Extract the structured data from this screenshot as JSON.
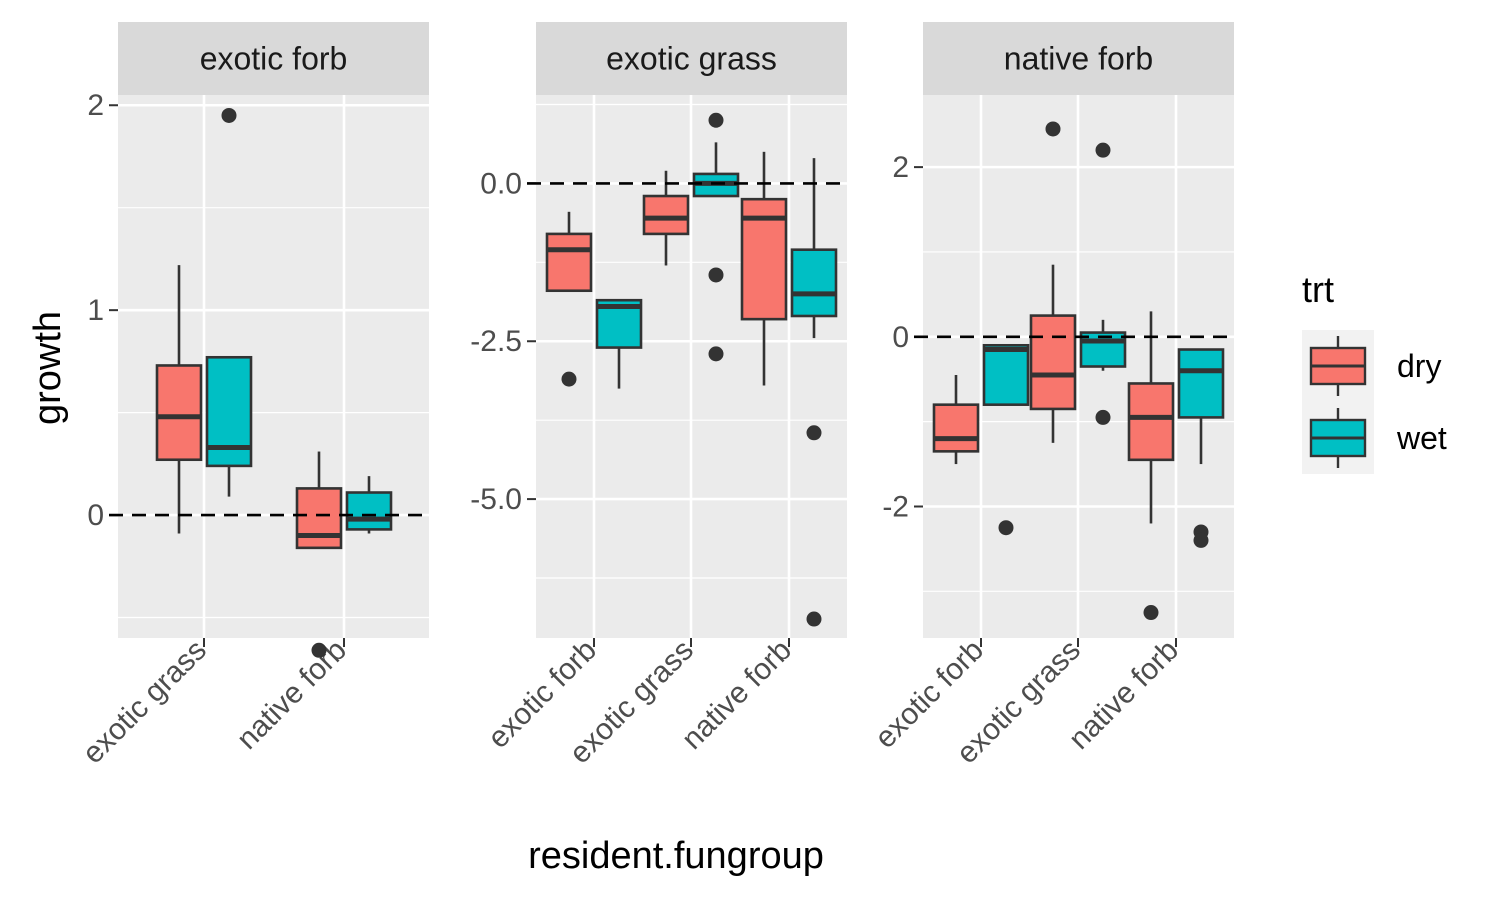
{
  "chart_data": {
    "type": "boxplot",
    "facet_by": "invader group",
    "xlabel": "resident.fungroup",
    "ylabel": "growth",
    "reference_line": 0,
    "grid": true,
    "scales": "free",
    "legend": {
      "title": "trt",
      "position": "right",
      "entries": [
        {
          "key": "dry",
          "label": "dry",
          "color": "#F8766D"
        },
        {
          "key": "wet",
          "label": "wet",
          "color": "#00BFC4"
        }
      ]
    },
    "colors": {
      "panel_bg": "#EBEBEB",
      "strip_bg": "#D9D9D9",
      "grid": "#FFFFFF",
      "box_outline": "#333333"
    },
    "panels": [
      {
        "title": "exotic forb",
        "ylim": [
          -0.6,
          2.05
        ],
        "yticks": [
          0,
          1,
          2
        ],
        "ytick_labels": [
          "0",
          "1",
          "2"
        ],
        "categories": [
          "exotic grass",
          "native forb"
        ],
        "boxes": [
          {
            "category": "exotic grass",
            "trt": "dry",
            "min": -0.09,
            "q1": 0.27,
            "median": 0.48,
            "q3": 0.73,
            "max": 1.22,
            "outliers": []
          },
          {
            "category": "exotic grass",
            "trt": "wet",
            "min": 0.09,
            "q1": 0.24,
            "median": 0.33,
            "q3": 0.77,
            "max": 0.77,
            "outliers": [
              1.95
            ]
          },
          {
            "category": "native forb",
            "trt": "dry",
            "min": -0.16,
            "q1": -0.16,
            "median": -0.1,
            "q3": 0.13,
            "max": 0.31,
            "outliers": [
              -0.66
            ]
          },
          {
            "category": "native forb",
            "trt": "wet",
            "min": -0.09,
            "q1": -0.07,
            "median": -0.02,
            "q3": 0.11,
            "max": 0.19,
            "outliers": []
          }
        ]
      },
      {
        "title": "exotic grass",
        "ylim": [
          -7.2,
          1.4
        ],
        "yticks": [
          0,
          -2.5,
          -5
        ],
        "ytick_labels": [
          "0.0",
          "-2.5",
          "-5.0"
        ],
        "categories": [
          "exotic forb",
          "exotic grass",
          "native forb"
        ],
        "boxes": [
          {
            "category": "exotic forb",
            "trt": "dry",
            "min": -1.7,
            "q1": -1.7,
            "median": -1.05,
            "q3": -0.8,
            "max": -0.45,
            "outliers": [
              -3.1
            ]
          },
          {
            "category": "exotic forb",
            "trt": "wet",
            "min": -3.25,
            "q1": -2.6,
            "median": -1.95,
            "q3": -1.85,
            "max": -1.85,
            "outliers": []
          },
          {
            "category": "exotic grass",
            "trt": "dry",
            "min": -1.3,
            "q1": -0.8,
            "median": -0.55,
            "q3": -0.2,
            "max": 0.2,
            "outliers": []
          },
          {
            "category": "exotic grass",
            "trt": "wet",
            "min": -0.2,
            "q1": -0.2,
            "median": 0.0,
            "q3": 0.15,
            "max": 0.65,
            "outliers": [
              1.0,
              -1.45,
              -2.7
            ]
          },
          {
            "category": "native forb",
            "trt": "dry",
            "min": -3.2,
            "q1": -2.15,
            "median": -0.55,
            "q3": -0.25,
            "max": 0.5,
            "outliers": []
          },
          {
            "category": "native forb",
            "trt": "wet",
            "min": -2.45,
            "q1": -2.1,
            "median": -1.75,
            "q3": -1.05,
            "max": 0.4,
            "outliers": [
              -3.95,
              -6.9
            ]
          }
        ]
      },
      {
        "title": "native forb",
        "ylim": [
          -3.55,
          2.85
        ],
        "yticks": [
          2,
          0,
          -2
        ],
        "ytick_labels": [
          "2",
          "0",
          "-2"
        ],
        "categories": [
          "exotic forb",
          "exotic grass",
          "native forb"
        ],
        "boxes": [
          {
            "category": "exotic forb",
            "trt": "dry",
            "min": -1.5,
            "q1": -1.35,
            "median": -1.2,
            "q3": -0.8,
            "max": -0.45,
            "outliers": []
          },
          {
            "category": "exotic forb",
            "trt": "wet",
            "min": -0.8,
            "q1": -0.8,
            "median": -0.15,
            "q3": -0.1,
            "max": -0.1,
            "outliers": [
              -2.25
            ]
          },
          {
            "category": "exotic grass",
            "trt": "dry",
            "min": -1.25,
            "q1": -0.85,
            "median": -0.45,
            "q3": 0.25,
            "max": 0.85,
            "outliers": [
              2.45
            ]
          },
          {
            "category": "exotic grass",
            "trt": "wet",
            "min": -0.4,
            "q1": -0.35,
            "median": -0.05,
            "q3": 0.05,
            "max": 0.2,
            "outliers": [
              2.2,
              -0.95
            ]
          },
          {
            "category": "native forb",
            "trt": "dry",
            "min": -2.2,
            "q1": -1.45,
            "median": -0.95,
            "q3": -0.55,
            "max": 0.3,
            "outliers": [
              -3.25
            ]
          },
          {
            "category": "native forb",
            "trt": "wet",
            "min": -1.5,
            "q1": -0.95,
            "median": -0.4,
            "q3": -0.15,
            "max": -0.15,
            "outliers": [
              -2.3,
              -2.4
            ]
          }
        ]
      }
    ]
  }
}
